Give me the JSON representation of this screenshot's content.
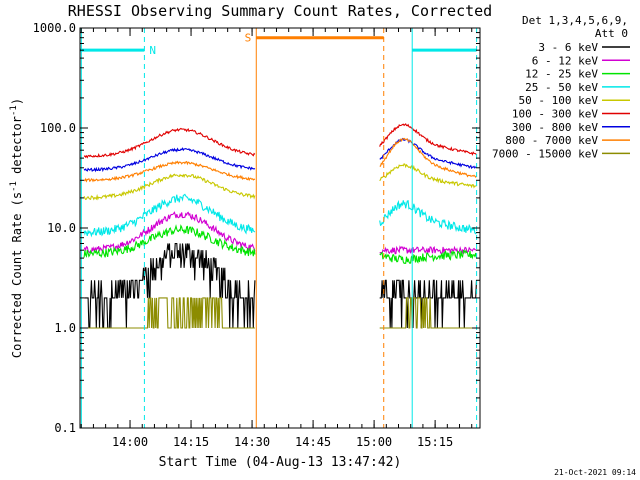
{
  "chart_data": {
    "type": "line",
    "title": "RHESSI Observing Summary Count Rates, Corrected",
    "xlabel": "Start Time (04-Aug-13 13:47:42)",
    "ylabel": "Corrected Count Rate (s⁻¹ detector⁻¹)",
    "ylabel_main": "Corrected Count Rate (s",
    "ylabel_sup1": "-1",
    "ylabel_mid": " detector",
    "ylabel_sup2": "-1",
    "ylabel_end": ")",
    "yscale": "log",
    "xlim": [
      0,
      5900
    ],
    "ylim": [
      0.1,
      1000
    ],
    "x_tick_seconds": [
      738,
      1638,
      2538,
      3438,
      4338,
      5238
    ],
    "x_ticks": [
      "14:00",
      "14:15",
      "14:30",
      "14:45",
      "15:00",
      "15:15"
    ],
    "y_ticks": [
      {
        "value": 1000,
        "label": "1000.0"
      },
      {
        "value": 100,
        "label": "100.0"
      },
      {
        "value": 10,
        "label": "10.0"
      },
      {
        "value": 1,
        "label": "1.0"
      },
      {
        "value": 0.1,
        "label": "0.1"
      }
    ],
    "legend": {
      "header": [
        "Det 1,3,4,5,6,9,",
        "Att 0"
      ],
      "placement": "right"
    },
    "footer_date": "21-Oct-2021 09:14",
    "gaps": [
      [
        2600,
        4480
      ]
    ],
    "series": [
      {
        "name": "3 - 6 keV",
        "color": "#000000",
        "base": 2.0,
        "peak": 3.0,
        "peak2": 1.2,
        "noise": 0.3,
        "quantize": true
      },
      {
        "name": "6 - 12 keV",
        "color": "#d200d2",
        "base": 6.0,
        "peak": 2.3,
        "peak2": 1.0,
        "noise": 0.08
      },
      {
        "name": "12 - 25 keV",
        "color": "#00e400",
        "base": 5.5,
        "peak": 1.75,
        "peak2": 0.9,
        "noise": 0.1
      },
      {
        "name": "25 - 50 keV",
        "color": "#00e8e8",
        "base": 9.0,
        "peak": 2.2,
        "peak2": 1.8,
        "noise": 0.1
      },
      {
        "name": "50 - 100 keV",
        "color": "#c8c800",
        "base": 20.0,
        "peak": 1.7,
        "peak2": 1.6,
        "noise": 0.04
      },
      {
        "name": "100 - 300 keV",
        "color": "#e00000",
        "base": 52.0,
        "peak": 1.85,
        "peak2": 1.9,
        "noise": 0.03
      },
      {
        "name": "300 - 800 keV",
        "color": "#0000e0",
        "base": 38.0,
        "peak": 1.6,
        "peak2": 1.85,
        "noise": 0.03
      },
      {
        "name": "800 - 7000 keV",
        "color": "#ff7f00",
        "base": 30.0,
        "peak": 1.5,
        "peak2": 2.3,
        "noise": 0.03
      },
      {
        "name": "7000 - 15000 keV",
        "color": "#8c8c00",
        "base": 1.0,
        "peak": 1.0,
        "peak2": 1.0,
        "noise": 0.0,
        "spiky": true
      }
    ],
    "annotations": [
      {
        "type": "flag_bar",
        "label": "N",
        "color": "#00e8e8",
        "x_start": 0,
        "x_end": 950,
        "y": 600,
        "label_position": "right"
      },
      {
        "type": "flag_bar",
        "label": "S",
        "color": "#ff7f00",
        "x_start": 2600,
        "x_end": 4480,
        "y": 800,
        "label_position": "left"
      },
      {
        "type": "flag_bar",
        "label": "",
        "color": "#00e8e8",
        "x_start": 4900,
        "x_end": 5850,
        "y": 600,
        "label_position": "none"
      }
    ],
    "vlines": [
      {
        "x": 20,
        "color": "#00e8e8",
        "style": "solid"
      },
      {
        "x": 950,
        "color": "#00e8e8",
        "style": "dashed"
      },
      {
        "x": 2600,
        "color": "#ff7f00",
        "style": "solid"
      },
      {
        "x": 4480,
        "color": "#ff7f00",
        "style": "dashed"
      },
      {
        "x": 4900,
        "color": "#00e8e8",
        "style": "solid"
      },
      {
        "x": 5850,
        "color": "#00e8e8",
        "style": "dashed"
      }
    ]
  }
}
